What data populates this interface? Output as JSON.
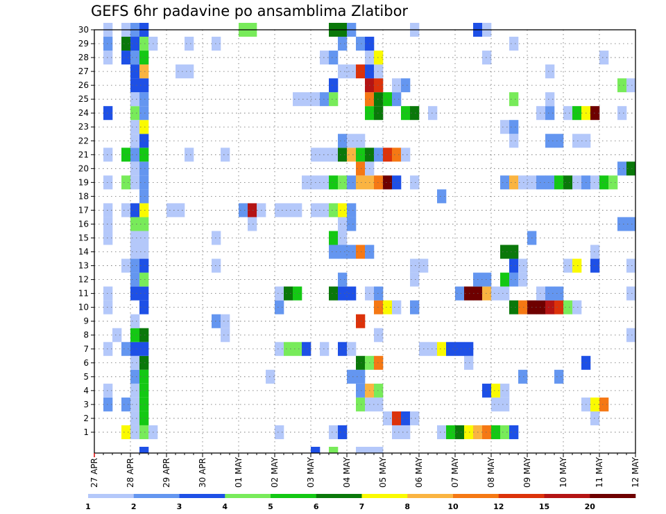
{
  "title": "GEFS 6hr padavine po ansamblima Zlatibor",
  "chart_data": {
    "type": "heatmap",
    "title": "GEFS 6hr padavine po ansamblima Zlatibor",
    "x_ticks": [
      "27 APR",
      "28 APR",
      "29 APR",
      "30 APR",
      "01 MAY",
      "02 MAY",
      "03 MAY",
      "04 MAY",
      "05 MAY",
      "06 MAY",
      "07 MAY",
      "08 MAY",
      "09 MAY",
      "10 MAY",
      "11 MAY",
      "12 MAY"
    ],
    "y_ticks": [
      1,
      2,
      3,
      4,
      5,
      6,
      7,
      8,
      9,
      10,
      11,
      12,
      13,
      14,
      15,
      16,
      17,
      18,
      19,
      20,
      21,
      22,
      23,
      24,
      25,
      26,
      27,
      28,
      29,
      30
    ],
    "ylim": [
      0,
      30
    ],
    "grid": true,
    "time_step_hours": 6,
    "colorbar": {
      "levels": [
        1,
        2,
        3,
        4,
        5,
        6,
        7,
        8,
        10,
        12,
        15,
        20
      ],
      "colors": [
        "#b4c8fa",
        "#6496f0",
        "#1e50e6",
        "#78eb5a",
        "#14c814",
        "#0a780a",
        "#fafa00",
        "#fab441",
        "#f57814",
        "#dc320a",
        "#b41414",
        "#6e0000"
      ]
    },
    "cells": [
      [
        1,
        3,
        7
      ],
      [
        1,
        4,
        1
      ],
      [
        1,
        5,
        4
      ],
      [
        1,
        6,
        1
      ],
      [
        1,
        20,
        1
      ],
      [
        1,
        26,
        1
      ],
      [
        1,
        27,
        3
      ],
      [
        1,
        33,
        1
      ],
      [
        1,
        34,
        1
      ],
      [
        1,
        38,
        1
      ],
      [
        1,
        39,
        5
      ],
      [
        1,
        40,
        6
      ],
      [
        1,
        41,
        7
      ],
      [
        1,
        42,
        8
      ],
      [
        1,
        43,
        9
      ],
      [
        1,
        44,
        5
      ],
      [
        1,
        45,
        4
      ],
      [
        1,
        46,
        3
      ],
      [
        2,
        4,
        1
      ],
      [
        2,
        5,
        5
      ],
      [
        2,
        32,
        1
      ],
      [
        2,
        33,
        10
      ],
      [
        2,
        34,
        3
      ],
      [
        2,
        35,
        1
      ],
      [
        2,
        55,
        1
      ],
      [
        3,
        1,
        2
      ],
      [
        3,
        3,
        2
      ],
      [
        3,
        4,
        1
      ],
      [
        3,
        5,
        5
      ],
      [
        3,
        29,
        4
      ],
      [
        3,
        30,
        1
      ],
      [
        3,
        31,
        1
      ],
      [
        3,
        44,
        1
      ],
      [
        3,
        45,
        1
      ],
      [
        3,
        54,
        1
      ],
      [
        3,
        55,
        7
      ],
      [
        3,
        56,
        9
      ],
      [
        4,
        1,
        1
      ],
      [
        4,
        4,
        1
      ],
      [
        4,
        5,
        5
      ],
      [
        4,
        29,
        2
      ],
      [
        4,
        30,
        8
      ],
      [
        4,
        31,
        4
      ],
      [
        4,
        43,
        3
      ],
      [
        4,
        44,
        7
      ],
      [
        4,
        45,
        1
      ],
      [
        5,
        4,
        2
      ],
      [
        5,
        5,
        5
      ],
      [
        5,
        19,
        1
      ],
      [
        5,
        28,
        2
      ],
      [
        5,
        29,
        2
      ],
      [
        5,
        47,
        2
      ],
      [
        5,
        51,
        2
      ],
      [
        6,
        4,
        1
      ],
      [
        6,
        5,
        6
      ],
      [
        6,
        29,
        6
      ],
      [
        6,
        30,
        4
      ],
      [
        6,
        31,
        9
      ],
      [
        6,
        41,
        1
      ],
      [
        6,
        54,
        3
      ],
      [
        7,
        1,
        1
      ],
      [
        7,
        3,
        2
      ],
      [
        7,
        4,
        3
      ],
      [
        7,
        5,
        3
      ],
      [
        7,
        20,
        1
      ],
      [
        7,
        21,
        4
      ],
      [
        7,
        22,
        4
      ],
      [
        7,
        23,
        3
      ],
      [
        7,
        25,
        1
      ],
      [
        7,
        27,
        3
      ],
      [
        7,
        28,
        1
      ],
      [
        7,
        36,
        1
      ],
      [
        7,
        37,
        1
      ],
      [
        7,
        38,
        7
      ],
      [
        7,
        39,
        3
      ],
      [
        7,
        40,
        3
      ],
      [
        7,
        41,
        3
      ],
      [
        8,
        2,
        1
      ],
      [
        8,
        4,
        5
      ],
      [
        8,
        5,
        6
      ],
      [
        8,
        14,
        1
      ],
      [
        8,
        31,
        1
      ],
      [
        8,
        59,
        1
      ],
      [
        9,
        4,
        1
      ],
      [
        9,
        13,
        2
      ],
      [
        9,
        14,
        1
      ],
      [
        9,
        29,
        10
      ],
      [
        10,
        1,
        1
      ],
      [
        10,
        5,
        3
      ],
      [
        10,
        20,
        2
      ],
      [
        10,
        31,
        9
      ],
      [
        10,
        32,
        7
      ],
      [
        10,
        33,
        1
      ],
      [
        10,
        35,
        2
      ],
      [
        10,
        46,
        6
      ],
      [
        10,
        47,
        9
      ],
      [
        10,
        48,
        12
      ],
      [
        10,
        49,
        12
      ],
      [
        10,
        50,
        11
      ],
      [
        10,
        51,
        10
      ],
      [
        10,
        52,
        4
      ],
      [
        10,
        53,
        1
      ],
      [
        11,
        1,
        1
      ],
      [
        11,
        4,
        3
      ],
      [
        11,
        5,
        3
      ],
      [
        11,
        20,
        1
      ],
      [
        11,
        21,
        6
      ],
      [
        11,
        22,
        5
      ],
      [
        11,
        26,
        6
      ],
      [
        11,
        27,
        3
      ],
      [
        11,
        28,
        3
      ],
      [
        11,
        30,
        1
      ],
      [
        11,
        31,
        2
      ],
      [
        11,
        40,
        2
      ],
      [
        11,
        41,
        12
      ],
      [
        11,
        42,
        12
      ],
      [
        11,
        43,
        8
      ],
      [
        11,
        44,
        1
      ],
      [
        11,
        45,
        1
      ],
      [
        11,
        49,
        1
      ],
      [
        11,
        50,
        2
      ],
      [
        11,
        51,
        2
      ],
      [
        11,
        59,
        1
      ],
      [
        12,
        4,
        2
      ],
      [
        12,
        5,
        4
      ],
      [
        12,
        27,
        2
      ],
      [
        12,
        35,
        1
      ],
      [
        12,
        42,
        2
      ],
      [
        12,
        43,
        2
      ],
      [
        12,
        45,
        5
      ],
      [
        12,
        46,
        2
      ],
      [
        12,
        47,
        1
      ],
      [
        13,
        3,
        1
      ],
      [
        13,
        4,
        2
      ],
      [
        13,
        5,
        3
      ],
      [
        13,
        13,
        1
      ],
      [
        13,
        35,
        1
      ],
      [
        13,
        36,
        1
      ],
      [
        13,
        46,
        3
      ],
      [
        13,
        47,
        1
      ],
      [
        13,
        52,
        1
      ],
      [
        13,
        53,
        7
      ],
      [
        13,
        55,
        3
      ],
      [
        13,
        59,
        1
      ],
      [
        14,
        4,
        1
      ],
      [
        14,
        5,
        1
      ],
      [
        14,
        26,
        2
      ],
      [
        14,
        27,
        2
      ],
      [
        14,
        28,
        2
      ],
      [
        14,
        29,
        9
      ],
      [
        14,
        30,
        2
      ],
      [
        14,
        45,
        6
      ],
      [
        14,
        46,
        6
      ],
      [
        14,
        55,
        1
      ],
      [
        15,
        1,
        1
      ],
      [
        15,
        4,
        1
      ],
      [
        15,
        5,
        1
      ],
      [
        15,
        13,
        1
      ],
      [
        15,
        26,
        5
      ],
      [
        15,
        27,
        1
      ],
      [
        15,
        48,
        2
      ],
      [
        16,
        1,
        1
      ],
      [
        16,
        4,
        4
      ],
      [
        16,
        5,
        4
      ],
      [
        16,
        17,
        1
      ],
      [
        16,
        27,
        1
      ],
      [
        16,
        28,
        2
      ],
      [
        16,
        58,
        2
      ],
      [
        16,
        59,
        2
      ],
      [
        17,
        1,
        1
      ],
      [
        17,
        3,
        1
      ],
      [
        17,
        4,
        3
      ],
      [
        17,
        5,
        7
      ],
      [
        17,
        8,
        1
      ],
      [
        17,
        9,
        1
      ],
      [
        17,
        16,
        2
      ],
      [
        17,
        17,
        11
      ],
      [
        17,
        18,
        1
      ],
      [
        17,
        20,
        1
      ],
      [
        17,
        21,
        1
      ],
      [
        17,
        22,
        1
      ],
      [
        17,
        24,
        1
      ],
      [
        17,
        25,
        1
      ],
      [
        17,
        26,
        4
      ],
      [
        17,
        27,
        7
      ],
      [
        17,
        28,
        2
      ],
      [
        18,
        5,
        2
      ],
      [
        18,
        38,
        2
      ],
      [
        19,
        1,
        1
      ],
      [
        19,
        3,
        4
      ],
      [
        19,
        4,
        1
      ],
      [
        19,
        5,
        2
      ],
      [
        19,
        23,
        1
      ],
      [
        19,
        24,
        1
      ],
      [
        19,
        25,
        1
      ],
      [
        19,
        26,
        5
      ],
      [
        19,
        27,
        4
      ],
      [
        19,
        28,
        2
      ],
      [
        19,
        29,
        8
      ],
      [
        19,
        30,
        8
      ],
      [
        19,
        31,
        9
      ],
      [
        19,
        32,
        12
      ],
      [
        19,
        33,
        3
      ],
      [
        19,
        35,
        1
      ],
      [
        19,
        45,
        2
      ],
      [
        19,
        46,
        8
      ],
      [
        19,
        47,
        1
      ],
      [
        19,
        48,
        1
      ],
      [
        19,
        49,
        2
      ],
      [
        19,
        50,
        2
      ],
      [
        19,
        51,
        5
      ],
      [
        19,
        52,
        6
      ],
      [
        19,
        53,
        1
      ],
      [
        19,
        54,
        2
      ],
      [
        19,
        55,
        1
      ],
      [
        19,
        56,
        5
      ],
      [
        19,
        57,
        4
      ],
      [
        20,
        4,
        1
      ],
      [
        20,
        5,
        2
      ],
      [
        20,
        29,
        9
      ],
      [
        20,
        30,
        1
      ],
      [
        20,
        58,
        2
      ],
      [
        20,
        59,
        6
      ],
      [
        21,
        1,
        1
      ],
      [
        21,
        3,
        5
      ],
      [
        21,
        4,
        2
      ],
      [
        21,
        5,
        5
      ],
      [
        21,
        10,
        1
      ],
      [
        21,
        14,
        1
      ],
      [
        21,
        24,
        1
      ],
      [
        21,
        25,
        1
      ],
      [
        21,
        26,
        1
      ],
      [
        21,
        27,
        6
      ],
      [
        21,
        28,
        8
      ],
      [
        21,
        29,
        5
      ],
      [
        21,
        30,
        6
      ],
      [
        21,
        31,
        2
      ],
      [
        21,
        32,
        10
      ],
      [
        21,
        33,
        9
      ],
      [
        21,
        34,
        1
      ],
      [
        22,
        4,
        1
      ],
      [
        22,
        5,
        3
      ],
      [
        22,
        27,
        2
      ],
      [
        22,
        28,
        1
      ],
      [
        22,
        29,
        1
      ],
      [
        22,
        46,
        1
      ],
      [
        22,
        50,
        2
      ],
      [
        22,
        51,
        2
      ],
      [
        22,
        53,
        1
      ],
      [
        22,
        54,
        1
      ],
      [
        23,
        4,
        1
      ],
      [
        23,
        5,
        7
      ],
      [
        23,
        45,
        1
      ],
      [
        23,
        46,
        2
      ],
      [
        24,
        1,
        3
      ],
      [
        24,
        4,
        4
      ],
      [
        24,
        5,
        2
      ],
      [
        24,
        30,
        5
      ],
      [
        24,
        31,
        6
      ],
      [
        24,
        34,
        5
      ],
      [
        24,
        35,
        6
      ],
      [
        24,
        37,
        1
      ],
      [
        24,
        49,
        1
      ],
      [
        24,
        50,
        2
      ],
      [
        24,
        52,
        1
      ],
      [
        24,
        53,
        5
      ],
      [
        24,
        54,
        7
      ],
      [
        24,
        55,
        12
      ],
      [
        24,
        58,
        1
      ],
      [
        25,
        4,
        1
      ],
      [
        25,
        5,
        2
      ],
      [
        25,
        22,
        1
      ],
      [
        25,
        23,
        1
      ],
      [
        25,
        24,
        1
      ],
      [
        25,
        25,
        2
      ],
      [
        25,
        26,
        4
      ],
      [
        25,
        30,
        9
      ],
      [
        25,
        31,
        6
      ],
      [
        25,
        32,
        5
      ],
      [
        25,
        33,
        2
      ],
      [
        25,
        46,
        4
      ],
      [
        25,
        50,
        1
      ],
      [
        26,
        4,
        3
      ],
      [
        26,
        5,
        3
      ],
      [
        26,
        26,
        3
      ],
      [
        26,
        30,
        11
      ],
      [
        26,
        31,
        10
      ],
      [
        26,
        33,
        1
      ],
      [
        26,
        34,
        2
      ],
      [
        26,
        58,
        4
      ],
      [
        26,
        59,
        1
      ],
      [
        27,
        4,
        3
      ],
      [
        27,
        5,
        8
      ],
      [
        27,
        9,
        1
      ],
      [
        27,
        10,
        1
      ],
      [
        27,
        27,
        1
      ],
      [
        27,
        28,
        1
      ],
      [
        27,
        29,
        10
      ],
      [
        27,
        30,
        3
      ],
      [
        27,
        31,
        1
      ],
      [
        27,
        50,
        1
      ],
      [
        28,
        1,
        1
      ],
      [
        28,
        3,
        3
      ],
      [
        28,
        4,
        2
      ],
      [
        28,
        5,
        5
      ],
      [
        28,
        25,
        1
      ],
      [
        28,
        26,
        2
      ],
      [
        28,
        30,
        1
      ],
      [
        28,
        31,
        7
      ],
      [
        28,
        43,
        1
      ],
      [
        28,
        56,
        1
      ],
      [
        29,
        1,
        2
      ],
      [
        29,
        3,
        6
      ],
      [
        29,
        4,
        3
      ],
      [
        29,
        5,
        4
      ],
      [
        29,
        6,
        1
      ],
      [
        29,
        10,
        1
      ],
      [
        29,
        13,
        1
      ],
      [
        29,
        27,
        2
      ],
      [
        29,
        29,
        2
      ],
      [
        29,
        30,
        3
      ],
      [
        29,
        46,
        1
      ],
      [
        30,
        1,
        1
      ],
      [
        30,
        3,
        1
      ],
      [
        30,
        4,
        2
      ],
      [
        30,
        5,
        3
      ],
      [
        30,
        16,
        4
      ],
      [
        30,
        17,
        4
      ],
      [
        30,
        26,
        6
      ],
      [
        30,
        27,
        6
      ],
      [
        30,
        28,
        2
      ],
      [
        30,
        35,
        1
      ],
      [
        30,
        42,
        3
      ],
      [
        30,
        43,
        1
      ],
      [
        0,
        5,
        3
      ],
      [
        0,
        24,
        3
      ],
      [
        0,
        26,
        4
      ],
      [
        0,
        29,
        1
      ],
      [
        0,
        30,
        1
      ],
      [
        0,
        31,
        1
      ]
    ]
  }
}
